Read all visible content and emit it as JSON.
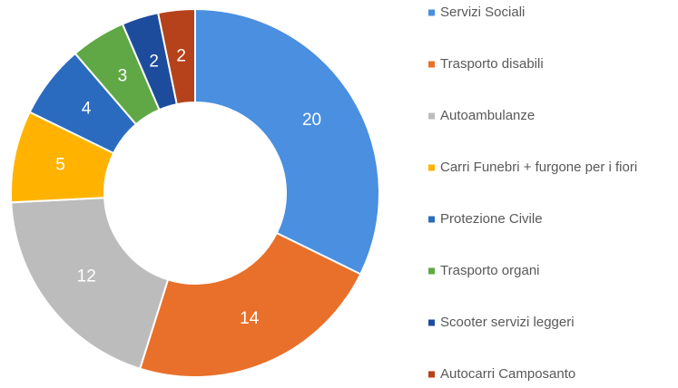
{
  "chart_data": {
    "type": "pie",
    "donut": true,
    "categories": [
      "Servizi Sociali",
      "Trasporto disabili",
      "Autoambulanze",
      "Carri Funebri + furgone per i fiori",
      "Protezione Civile",
      "Trasporto organi",
      "Scooter servizi leggeri",
      "Autocarri Camposanto"
    ],
    "values": [
      20,
      14,
      12,
      5,
      4,
      3,
      2,
      2
    ],
    "colors": [
      "#4a8fe0",
      "#e8702a",
      "#bcbcbc",
      "#ffb300",
      "#2b6bbf",
      "#5fa845",
      "#1d4c9c",
      "#b5421a"
    ],
    "legend": "right"
  }
}
